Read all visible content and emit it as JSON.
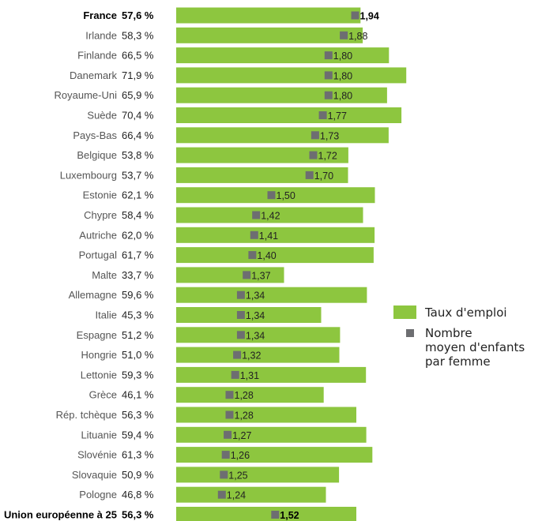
{
  "chart_data": {
    "type": "bar",
    "colors": {
      "bar": "#8dc63f",
      "marker": "#6d6e71"
    },
    "legend": {
      "position": "right",
      "employment_label": "Taux d'emploi",
      "children_label_lines": [
        "Nombre",
        "moyen d'enfants",
        "par femme"
      ]
    },
    "rows": [
      {
        "country": "France",
        "rate_label": "57,6 %",
        "rate": 57.6,
        "fertility_label": "1,94",
        "fertility": 1.94,
        "bold": true
      },
      {
        "country": "Irlande",
        "rate_label": "58,3 %",
        "rate": 58.3,
        "fertility_label": "1,88",
        "fertility": 1.88
      },
      {
        "country": "Finlande",
        "rate_label": "66,5 %",
        "rate": 66.5,
        "fertility_label": "1,80",
        "fertility": 1.8
      },
      {
        "country": "Danemark",
        "rate_label": "71,9 %",
        "rate": 71.9,
        "fertility_label": "1,80",
        "fertility": 1.8
      },
      {
        "country": "Royaume-Uni",
        "rate_label": "65,9 %",
        "rate": 65.9,
        "fertility_label": "1,80",
        "fertility": 1.8
      },
      {
        "country": "Suède",
        "rate_label": "70,4 %",
        "rate": 70.4,
        "fertility_label": "1,77",
        "fertility": 1.77
      },
      {
        "country": "Pays-Bas",
        "rate_label": "66,4 %",
        "rate": 66.4,
        "fertility_label": "1,73",
        "fertility": 1.73
      },
      {
        "country": "Belgique",
        "rate_label": "53,8 %",
        "rate": 53.8,
        "fertility_label": "1,72",
        "fertility": 1.72
      },
      {
        "country": "Luxembourg",
        "rate_label": "53,7 %",
        "rate": 53.7,
        "fertility_label": "1,70",
        "fertility": 1.7
      },
      {
        "country": "Estonie",
        "rate_label": "62,1 %",
        "rate": 62.1,
        "fertility_label": "1,50",
        "fertility": 1.5
      },
      {
        "country": "Chypre",
        "rate_label": "58,4 %",
        "rate": 58.4,
        "fertility_label": "1,42",
        "fertility": 1.42
      },
      {
        "country": "Autriche",
        "rate_label": "62,0 %",
        "rate": 62.0,
        "fertility_label": "1,41",
        "fertility": 1.41
      },
      {
        "country": "Portugal",
        "rate_label": "61,7 %",
        "rate": 61.7,
        "fertility_label": "1,40",
        "fertility": 1.4
      },
      {
        "country": "Malte",
        "rate_label": "33,7 %",
        "rate": 33.7,
        "fertility_label": "1,37",
        "fertility": 1.37
      },
      {
        "country": "Allemagne",
        "rate_label": "59,6 %",
        "rate": 59.6,
        "fertility_label": "1,34",
        "fertility": 1.34
      },
      {
        "country": "Italie",
        "rate_label": "45,3 %",
        "rate": 45.3,
        "fertility_label": "1,34",
        "fertility": 1.34
      },
      {
        "country": "Espagne",
        "rate_label": "51,2 %",
        "rate": 51.2,
        "fertility_label": "1,34",
        "fertility": 1.34
      },
      {
        "country": "Hongrie",
        "rate_label": "51,0 %",
        "rate": 51.0,
        "fertility_label": "1,32",
        "fertility": 1.32
      },
      {
        "country": "Lettonie",
        "rate_label": "59,3 %",
        "rate": 59.3,
        "fertility_label": "1,31",
        "fertility": 1.31
      },
      {
        "country": "Grèce",
        "rate_label": "46,1 %",
        "rate": 46.1,
        "fertility_label": "1,28",
        "fertility": 1.28
      },
      {
        "country": "Rép. tchèque",
        "rate_label": "56,3 %",
        "rate": 56.3,
        "fertility_label": "1,28",
        "fertility": 1.28
      },
      {
        "country": "Lituanie",
        "rate_label": "59,4 %",
        "rate": 59.4,
        "fertility_label": "1,27",
        "fertility": 1.27
      },
      {
        "country": "Slovénie",
        "rate_label": "61,3 %",
        "rate": 61.3,
        "fertility_label": "1,26",
        "fertility": 1.26
      },
      {
        "country": "Slovaquie",
        "rate_label": "50,9 %",
        "rate": 50.9,
        "fertility_label": "1,25",
        "fertility": 1.25
      },
      {
        "country": "Pologne",
        "rate_label": "46,8 %",
        "rate": 46.8,
        "fertility_label": "1,24",
        "fertility": 1.24
      },
      {
        "country": "Union européenne à 25",
        "rate_label": "56,3 %",
        "rate": 56.3,
        "fertility_label": "1,52",
        "fertility": 1.52,
        "bold": true
      }
    ]
  }
}
